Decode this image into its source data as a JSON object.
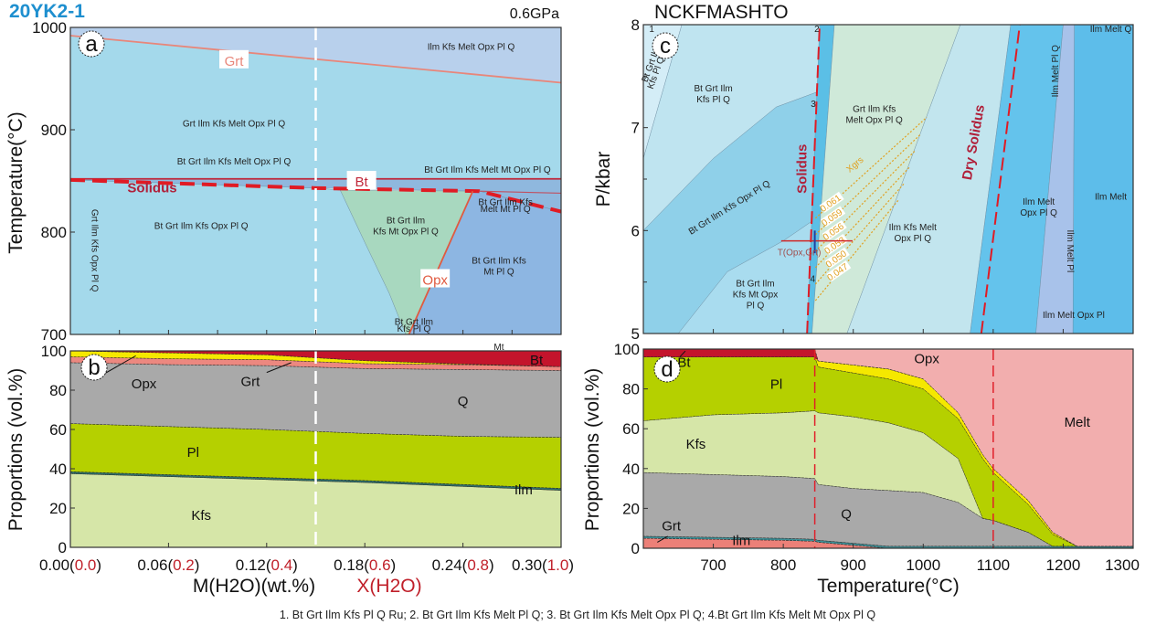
{
  "figure": {
    "sample": "20YK2-1",
    "pressure": "0.6GPa",
    "system": "NCKFMASHTO",
    "footnote": "1. Bt Grt Ilm Kfs Pl Q Ru; 2. Bt Grt Ilm Kfs Melt Pl Q;  3. Bt Grt Ilm Kfs Melt Opx Pl Q; 4.Bt Grt Ilm Kfs Melt Mt Opx Pl Q",
    "title_color": "#1e8fcf"
  },
  "chart_data": [
    {
      "panel": "a",
      "type": "phase-diagram",
      "ylabel": "Temperature(°C)",
      "xlim": [
        0,
        0.3
      ],
      "ylim": [
        700,
        1000
      ],
      "yticks": [
        700,
        800,
        900,
        1000
      ],
      "xticks_minor": [
        0,
        0.03,
        0.06,
        0.09,
        0.12,
        0.15,
        0.18,
        0.21,
        0.24,
        0.27,
        0.3
      ],
      "reference_line_x": 0.15,
      "fields": [
        {
          "name": "Ilm Kfs Melt Opx Pl Q",
          "color": "#b8d0ec",
          "polygon": [
            [
              0,
              992
            ],
            [
              0.3,
              946
            ],
            [
              0.3,
              1000
            ],
            [
              0,
              1000
            ]
          ]
        },
        {
          "name": "Grt Ilm Kfs Melt Opx Pl Q",
          "color": "#a4d9eb",
          "polygon": [
            [
              0,
              852
            ],
            [
              0.3,
              852
            ],
            [
              0.3,
              946
            ],
            [
              0,
              992
            ]
          ]
        },
        {
          "name": "Bt Grt Ilm Kfs Melt Opx Pl Q",
          "color": "#8fb8de",
          "polygon": [
            [
              0,
              852
            ],
            [
              0.3,
              852
            ],
            [
              0.3,
              820
            ],
            [
              0.25,
              840
            ],
            [
              0.15,
              843
            ],
            [
              0,
              851
            ]
          ]
        },
        {
          "name": "Bt Grt Ilm Kfs Opx Pl Q",
          "color": "#a4d9eb",
          "polygon": [
            [
              0,
              851
            ],
            [
              0.15,
              843
            ],
            [
              0.165,
              841
            ],
            [
              0.18,
              790
            ],
            [
              0.195,
              740
            ],
            [
              0.205,
              700
            ],
            [
              0,
              700
            ]
          ]
        },
        {
          "name": "Bt Grt Ilm Kfs Mt Opx Pl Q",
          "color": "#a8d8bf",
          "polygon": [
            [
              0.165,
              841
            ],
            [
              0.246,
              840
            ],
            [
              0.207,
              700
            ],
            [
              0.205,
              700
            ],
            [
              0.195,
              740
            ],
            [
              0.18,
              790
            ]
          ]
        },
        {
          "name": "Bt Grt Ilm Kfs Mt Pl Q",
          "color": "#8db6e2",
          "polygon": [
            [
              0.246,
              840
            ],
            [
              0.25,
              840
            ],
            [
              0.3,
              820
            ],
            [
              0.3,
              700
            ],
            [
              0.207,
              700
            ]
          ]
        }
      ],
      "lines": [
        {
          "label": "Grt",
          "color": "#e8867a",
          "dashed": false,
          "points": [
            [
              0,
              992
            ],
            [
              0.3,
              946
            ]
          ]
        },
        {
          "label": "Bt",
          "color": "#c0283a",
          "dashed": false,
          "points": [
            [
              0,
              852
            ],
            [
              0.3,
              852
            ]
          ]
        },
        {
          "label": "Solidus",
          "color": "#e01b24",
          "dashed": true,
          "points": [
            [
              0,
              851
            ],
            [
              0.15,
              843
            ],
            [
              0.25,
              840
            ],
            [
              0.3,
              820
            ]
          ]
        },
        {
          "label": "Opx",
          "color": "#e05a40",
          "dashed": false,
          "points": [
            [
              0.246,
              840
            ],
            [
              0.207,
              700
            ]
          ]
        }
      ],
      "field_labels": [
        {
          "text": [
            "Ilm Kfs Melt Opx Pl Q"
          ]
        },
        {
          "text": [
            "Grt Ilm Kfs Melt Opx Pl Q"
          ]
        },
        {
          "text": [
            "Bt Grt Ilm Kfs Melt Opx Pl Q"
          ]
        },
        {
          "text": [
            "Bt Grt Ilm Kfs Melt Mt Opx Pl Q"
          ]
        },
        {
          "text": [
            "Bt Grt Ilm Kfs Opx Pl Q"
          ]
        },
        {
          "text": [
            "Bt Grt Ilm",
            "Kfs Mt Opx Pl Q"
          ]
        },
        {
          "text": [
            "Bt Grt Ilm Kfs",
            "Mt Pl Q"
          ]
        },
        {
          "text": [
            "Bt Grt Ilm Kfs",
            "Melt Mt Pl Q"
          ]
        },
        {
          "text": [
            "Bt Grt Ilm",
            "Kfs Pl Q"
          ]
        },
        {
          "text": [
            "Grt Ilm Kfs Opx Pl Q"
          ]
        }
      ]
    },
    {
      "panel": "b",
      "type": "area",
      "stacked": true,
      "ylabel": "Proportions (vol.%)",
      "xlabel": "M(H2O)(wt.%)",
      "x2label": "X(H2O)",
      "xlim": [
        0,
        0.3
      ],
      "ylim": [
        0,
        100
      ],
      "yticks": [
        0,
        20,
        40,
        60,
        80,
        100
      ],
      "xtick_labels": [
        {
          "m": "0.00",
          "x": "0.0"
        },
        {
          "m": "0.06",
          "x": "0.2"
        },
        {
          "m": "0.12",
          "x": "0.4"
        },
        {
          "m": "0.18",
          "x": "0.6"
        },
        {
          "m": "0.24",
          "x": "0.8"
        },
        {
          "m": "0.30",
          "x": "1.0"
        }
      ],
      "x": [
        0,
        0.06,
        0.12,
        0.18,
        0.24,
        0.3
      ],
      "series": [
        {
          "name": "Kfs",
          "color": "#d6e6a8",
          "values": [
            37.5,
            36,
            34.5,
            33,
            31,
            29
          ]
        },
        {
          "name": "Ilm",
          "color": "#2f6f6a",
          "values": [
            1,
            1,
            1,
            1,
            1,
            1
          ]
        },
        {
          "name": "Pl",
          "color": "#b5d000",
          "values": [
            24.5,
            24.5,
            24.5,
            24,
            24.5,
            26
          ]
        },
        {
          "name": "Q",
          "color": "#a9a9a9",
          "values": [
            31,
            31.5,
            32.5,
            33,
            34,
            34
          ]
        },
        {
          "name": "Grt",
          "color": "#ec8880",
          "values": [
            3,
            3,
            3,
            2.5,
            2.5,
            2
          ]
        },
        {
          "name": "Opx",
          "color": "#f5e800",
          "values": [
            3,
            3,
            2.5,
            1.5,
            0.3,
            0
          ]
        },
        {
          "name": "Bt",
          "color": "#c4142c",
          "values": [
            0,
            1,
            2,
            5,
            6.7,
            8
          ]
        }
      ],
      "extra_labels": [
        "Mt"
      ]
    },
    {
      "panel": "c",
      "type": "phase-diagram",
      "ylabel": "P/kbar",
      "xlim": [
        600,
        1300
      ],
      "ylim": [
        5,
        8
      ],
      "yticks": [
        5,
        6,
        7,
        8
      ],
      "fields": [
        {
          "name": "Bt Grt Ilm Kfs Pl Q Ru",
          "color": "#d4edf7",
          "polygon": [
            [
              600,
              8
            ],
            [
              655,
              8
            ],
            [
              600,
              6.7
            ]
          ]
        },
        {
          "name": "Bt Grt Ilm Kfs Pl Q",
          "color": "#bfe4f0",
          "polygon": [
            [
              655,
              8
            ],
            [
              852,
              8
            ],
            [
              850,
              7.35
            ],
            [
              790,
              7.2
            ],
            [
              700,
              6.7
            ],
            [
              600,
              6.0
            ],
            [
              600,
              6.7
            ]
          ]
        },
        {
          "name": "Bt Grt Ilm Kfs Opx Pl Q",
          "color": "#8fd0e9",
          "polygon": [
            [
              600,
              6.0
            ],
            [
              700,
              6.7
            ],
            [
              790,
              7.2
            ],
            [
              850,
              7.35
            ],
            [
              843,
              6.1
            ],
            [
              800,
              5.9
            ],
            [
              720,
              5.6
            ],
            [
              650,
              5
            ],
            [
              600,
              5
            ]
          ]
        },
        {
          "name": "Bt Grt Ilm Kfs Mt Opx Pl Q",
          "color": "#a9dcef",
          "polygon": [
            [
              650,
              5
            ],
            [
              720,
              5.6
            ],
            [
              800,
              5.9
            ],
            [
              843,
              6.1
            ],
            [
              834,
              5
            ]
          ]
        },
        {
          "name": "Bt Grt Ilm Kfs Melt Pl Q",
          "color": "#5bbfe6",
          "polygon": [
            [
              834,
              5
            ],
            [
              852,
              8
            ],
            [
              873,
              8
            ],
            [
              841,
              5
            ]
          ]
        },
        {
          "name": "Grt Ilm Kfs Melt Opx Pl Q",
          "color": "#cfe9d9",
          "polygon": [
            [
              841,
              5
            ],
            [
              873,
              8
            ],
            [
              1053,
              8
            ],
            [
              891,
              5
            ]
          ]
        },
        {
          "name": "Ilm Kfs Melt Opx Pl Q",
          "color": "#c2e5ee",
          "polygon": [
            [
              891,
              5
            ],
            [
              1053,
              8
            ],
            [
              1125,
              8
            ],
            [
              1067,
              5
            ]
          ]
        },
        {
          "name": "Ilm Melt Opx Pl Q",
          "color": "#64c3ec",
          "polygon": [
            [
              1067,
              5
            ],
            [
              1125,
              8
            ],
            [
              1200,
              8
            ],
            [
              1161,
              5
            ]
          ]
        },
        {
          "name": "Ilm Melt Pl",
          "color": "#a8c2ea",
          "polygon": [
            [
              1161,
              5
            ],
            [
              1200,
              8
            ],
            [
              1216,
              8
            ],
            [
              1214,
              5
            ]
          ]
        },
        {
          "name": "Ilm Melt",
          "color": "#5dbdea",
          "polygon": [
            [
              1214,
              5
            ],
            [
              1216,
              8
            ],
            [
              1300,
              8
            ],
            [
              1300,
              5
            ]
          ]
        }
      ],
      "lines": [
        {
          "label": "Solidus",
          "color": "#e01b24",
          "dashed": true,
          "points": [
            [
              834,
              5
            ],
            [
              852,
              8
            ]
          ]
        },
        {
          "label": "Dry Solidus",
          "color": "#e01b24",
          "dashed": true,
          "points": [
            [
              1083,
              5
            ],
            [
              1138,
              8
            ]
          ]
        }
      ],
      "isopleths": {
        "label": "Xgrs",
        "color": "#e0a020",
        "values": [
          "0.061",
          "0.059",
          "0.056",
          "0.053",
          "0.050",
          "0.047"
        ]
      },
      "estimate": {
        "label": "T(Opx,Grt)",
        "T": 845,
        "T_range": [
          797,
          899
        ],
        "P": 5.9,
        "P_range": [
          5.78,
          6.0
        ]
      },
      "numbered_fields": [
        "1",
        "2",
        "3",
        "4"
      ],
      "field_labels": [
        {
          "text": [
            "Bt Grt Ilm",
            "Kfs Pl Q"
          ]
        },
        {
          "text": [
            "Grt Ilm Kfs",
            "Melt Opx Pl Q"
          ]
        },
        {
          "text": [
            "Bt Grt Ilm Kfs Opx Pl Q"
          ]
        },
        {
          "text": [
            "Bt Grt Ilm",
            "Kfs Mt Opx",
            "Pl Q"
          ]
        },
        {
          "text": [
            "Ilm Kfs Melt",
            "Opx Pl Q"
          ]
        },
        {
          "text": [
            "Ilm Melt",
            "Opx Pl Q"
          ]
        },
        {
          "text": [
            "Ilm Melt"
          ]
        },
        {
          "text": [
            "Ilm Melt Q"
          ]
        },
        {
          "text": [
            "Ilm Melt Pl Q"
          ]
        },
        {
          "text": [
            "Ilm Melt Pl"
          ]
        },
        {
          "text": [
            "Ilm Melt Opx Pl"
          ]
        },
        {
          "text": [
            "Bt Grt Ilm",
            "Kfs Pl Q Ru"
          ]
        }
      ]
    },
    {
      "panel": "d",
      "type": "area",
      "stacked": true,
      "ylabel": "Proportions (vol.%)",
      "xlabel": "Temperature(°C)",
      "xlim": [
        600,
        1300
      ],
      "ylim": [
        0,
        100
      ],
      "yticks": [
        0,
        20,
        40,
        60,
        80,
        100
      ],
      "xticks": [
        700,
        800,
        900,
        1000,
        1100,
        1200,
        1300
      ],
      "reference_lines_x": [
        845,
        1100
      ],
      "x": [
        600,
        700,
        800,
        845,
        850,
        900,
        950,
        1000,
        1050,
        1085,
        1100,
        1150,
        1185,
        1220,
        1300
      ],
      "series": [
        {
          "name": "Grt",
          "color": "#ec8078",
          "values": [
            5,
            4.5,
            4,
            3.5,
            3,
            1.5,
            0,
            0,
            0,
            0,
            0,
            0,
            0,
            0,
            0
          ]
        },
        {
          "name": "Ilm",
          "color": "#3e8f96",
          "values": [
            1,
            1,
            1,
            1,
            1,
            1,
            1,
            1,
            1,
            1,
            1,
            1,
            1,
            1,
            1
          ]
        },
        {
          "name": "Q",
          "color": "#a9a9a9",
          "values": [
            32,
            31.5,
            31,
            30.5,
            28,
            27.5,
            28,
            27,
            22,
            14,
            13,
            7,
            0,
            0,
            0
          ]
        },
        {
          "name": "Kfs",
          "color": "#d6e6a8",
          "values": [
            26,
            30,
            32,
            34,
            36,
            36,
            34,
            30,
            22,
            0,
            0,
            0,
            0,
            0,
            0
          ]
        },
        {
          "name": "Pl",
          "color": "#b5d000",
          "values": [
            32,
            29,
            28,
            27,
            23,
            22,
            22,
            22,
            20,
            30,
            24,
            14,
            6,
            0,
            0
          ]
        },
        {
          "name": "Opx",
          "color": "#f5e800",
          "values": [
            0,
            0,
            0,
            0,
            3,
            4,
            5,
            5,
            3,
            2,
            2,
            2,
            1,
            0,
            0
          ]
        },
        {
          "name": "Bt",
          "color": "#c4142c",
          "values": [
            4,
            4,
            4,
            4,
            0,
            0,
            0,
            0,
            0,
            0,
            0,
            0,
            0,
            0,
            0
          ]
        },
        {
          "name": "Melt",
          "color": "#f2aeae",
          "values": [
            0,
            0,
            0,
            0,
            6,
            8,
            10,
            15,
            32,
            53,
            60,
            76,
            92,
            99,
            99
          ]
        }
      ]
    }
  ]
}
